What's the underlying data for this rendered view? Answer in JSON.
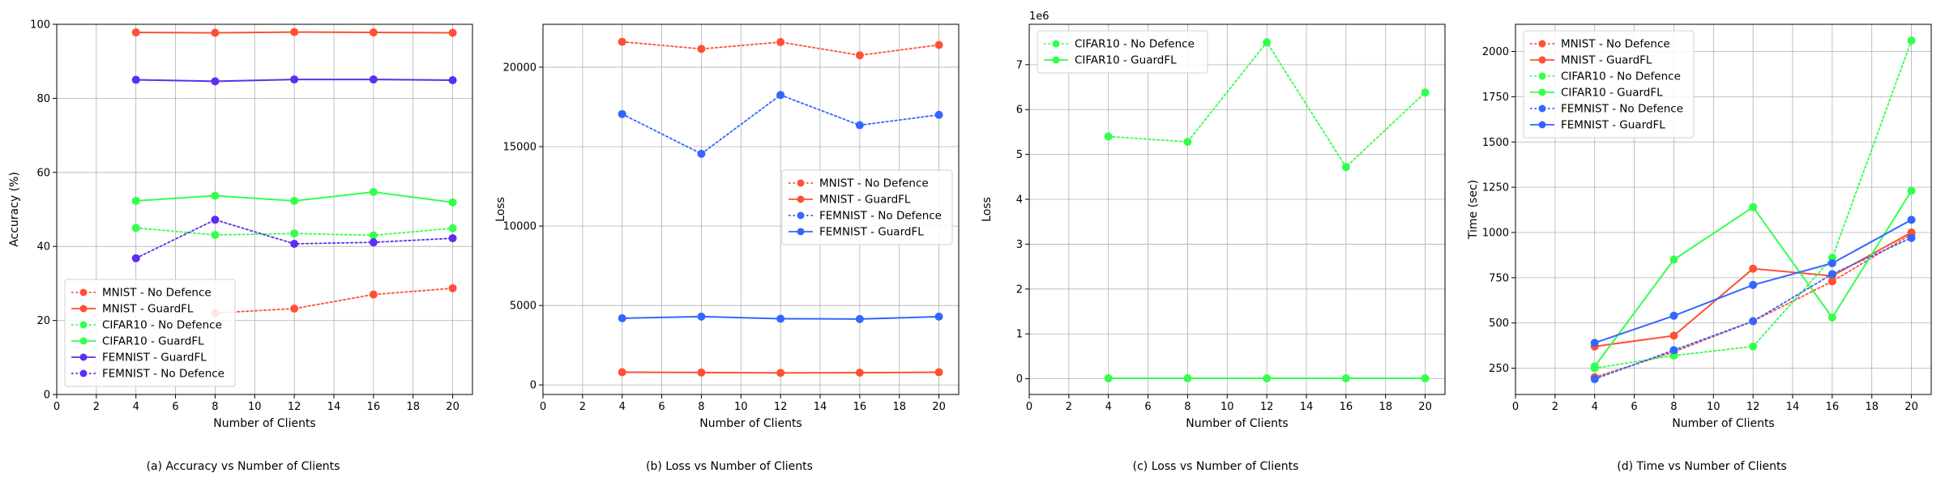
{
  "figure": {
    "captions": [
      "(a) Accuracy vs Number of Clients",
      "(b) Loss vs Number of Clients",
      "(c) Loss vs Number of Clients",
      "(d) Time vs Number of Clients"
    ]
  },
  "colors": {
    "mnist": "#ff5033",
    "cifar10": "#33ff4d",
    "femnist_blue": "#3366ff",
    "femnist_purple": "#5b2ef0"
  },
  "chart_data": [
    {
      "type": "line",
      "xlabel": "Number of Clients",
      "ylabel": "Accuracy (%)",
      "xlim": [
        0,
        21
      ],
      "ylim": [
        0,
        100
      ],
      "xticks": [
        0,
        2,
        4,
        6,
        8,
        10,
        12,
        14,
        16,
        18,
        20
      ],
      "yticks": [
        0,
        20,
        40,
        60,
        80,
        100
      ],
      "exponent_label": "",
      "grid": true,
      "legend_position": "lower-left",
      "x": [
        4,
        8,
        12,
        16,
        20
      ],
      "series": [
        {
          "name": "MNIST - No Defence",
          "color": "#ff5033",
          "style": "dotted",
          "values": [
            null,
            22,
            23.2,
            27,
            28.7
          ]
        },
        {
          "name": "MNIST - GuardFL",
          "color": "#ff5033",
          "style": "solid",
          "values": [
            97.8,
            97.7,
            97.9,
            97.8,
            97.7
          ]
        },
        {
          "name": "CIFAR10 - No Defence",
          "color": "#33ff4d",
          "style": "dotted",
          "values": [
            45,
            43.1,
            43.5,
            43,
            44.9
          ]
        },
        {
          "name": "CIFAR10 - GuardFL",
          "color": "#33ff4d",
          "style": "solid",
          "values": [
            52.3,
            53.7,
            52.3,
            54.7,
            51.9
          ]
        },
        {
          "name": "FEMNIST - GuardFL",
          "color": "#5b2ef0",
          "style": "solid",
          "values": [
            85,
            84.6,
            85.1,
            85.1,
            84.9
          ]
        },
        {
          "name": "FEMNIST - No Defence",
          "color": "#5b2ef0",
          "style": "dotted",
          "values": [
            36.8,
            47.2,
            40.7,
            41.1,
            42.2
          ]
        }
      ]
    },
    {
      "type": "line",
      "xlabel": "Number of Clients",
      "ylabel": "Loss",
      "xlim": [
        0,
        21
      ],
      "ylim": [
        -600,
        22700
      ],
      "xticks": [
        0,
        2,
        4,
        6,
        8,
        10,
        12,
        14,
        16,
        18,
        20
      ],
      "yticks": [
        0,
        5000,
        10000,
        15000,
        20000
      ],
      "exponent_label": "",
      "grid": true,
      "legend_position": "center-right",
      "x": [
        4,
        8,
        12,
        16,
        20
      ],
      "series": [
        {
          "name": "MNIST - No Defence",
          "color": "#ff5033",
          "style": "dotted",
          "values": [
            21600,
            21150,
            21580,
            20750,
            21400
          ]
        },
        {
          "name": "MNIST - GuardFL",
          "color": "#ff5033",
          "style": "solid",
          "values": [
            800,
            780,
            760,
            770,
            800
          ]
        },
        {
          "name": "FEMNIST - No Defence",
          "color": "#3366ff",
          "style": "dotted",
          "values": [
            17050,
            14550,
            18250,
            16350,
            17000
          ]
        },
        {
          "name": "FEMNIST - GuardFL",
          "color": "#3366ff",
          "style": "solid",
          "values": [
            4200,
            4300,
            4170,
            4150,
            4300
          ]
        }
      ]
    },
    {
      "type": "line",
      "xlabel": "Number of Clients",
      "ylabel": "Loss",
      "xlim": [
        0,
        21
      ],
      "ylim": [
        -0.35,
        7.9
      ],
      "xticks": [
        0,
        2,
        4,
        6,
        8,
        10,
        12,
        14,
        16,
        18,
        20
      ],
      "yticks": [
        0,
        1,
        2,
        3,
        4,
        5,
        6,
        7
      ],
      "exponent_label": "1e6",
      "grid": true,
      "legend_position": "top-left",
      "x": [
        4,
        8,
        12,
        16,
        20
      ],
      "series": [
        {
          "name": "CIFAR10 - No Defence",
          "color": "#33ff4d",
          "style": "dotted",
          "values": [
            5.4,
            5.28,
            7.5,
            4.72,
            6.38
          ]
        },
        {
          "name": "CIFAR10 - GuardFL",
          "color": "#33ff4d",
          "style": "solid",
          "values": [
            0.01,
            0.01,
            0.01,
            0.01,
            0.01
          ]
        }
      ]
    },
    {
      "type": "line",
      "xlabel": "Number of Clients",
      "ylabel": "Time (sec)",
      "xlim": [
        0,
        21
      ],
      "ylim": [
        105,
        2150
      ],
      "xticks": [
        0,
        2,
        4,
        6,
        8,
        10,
        12,
        14,
        16,
        18,
        20
      ],
      "yticks": [
        250,
        500,
        750,
        1000,
        1250,
        1500,
        1750,
        2000
      ],
      "exponent_label": "",
      "grid": true,
      "legend_position": "top-left",
      "x": [
        4,
        8,
        12,
        16,
        20
      ],
      "series": [
        {
          "name": "MNIST - No Defence",
          "color": "#ff5033",
          "style": "dotted",
          "values": [
            200,
            340,
            510,
            730,
            990
          ]
        },
        {
          "name": "MNIST - GuardFL",
          "color": "#ff5033",
          "style": "solid",
          "values": [
            370,
            430,
            800,
            760,
            1000
          ]
        },
        {
          "name": "CIFAR10 - No Defence",
          "color": "#33ff4d",
          "style": "dotted",
          "values": [
            250,
            320,
            370,
            860,
            2060
          ]
        },
        {
          "name": "CIFAR10 - GuardFL",
          "color": "#33ff4d",
          "style": "solid",
          "values": [
            260,
            850,
            1140,
            530,
            1230
          ]
        },
        {
          "name": "FEMNIST - No Defence",
          "color": "#3366ff",
          "style": "dotted",
          "values": [
            190,
            350,
            510,
            770,
            970
          ]
        },
        {
          "name": "FEMNIST - GuardFL",
          "color": "#3366ff",
          "style": "solid",
          "values": [
            390,
            540,
            710,
            830,
            1070
          ]
        }
      ]
    }
  ]
}
